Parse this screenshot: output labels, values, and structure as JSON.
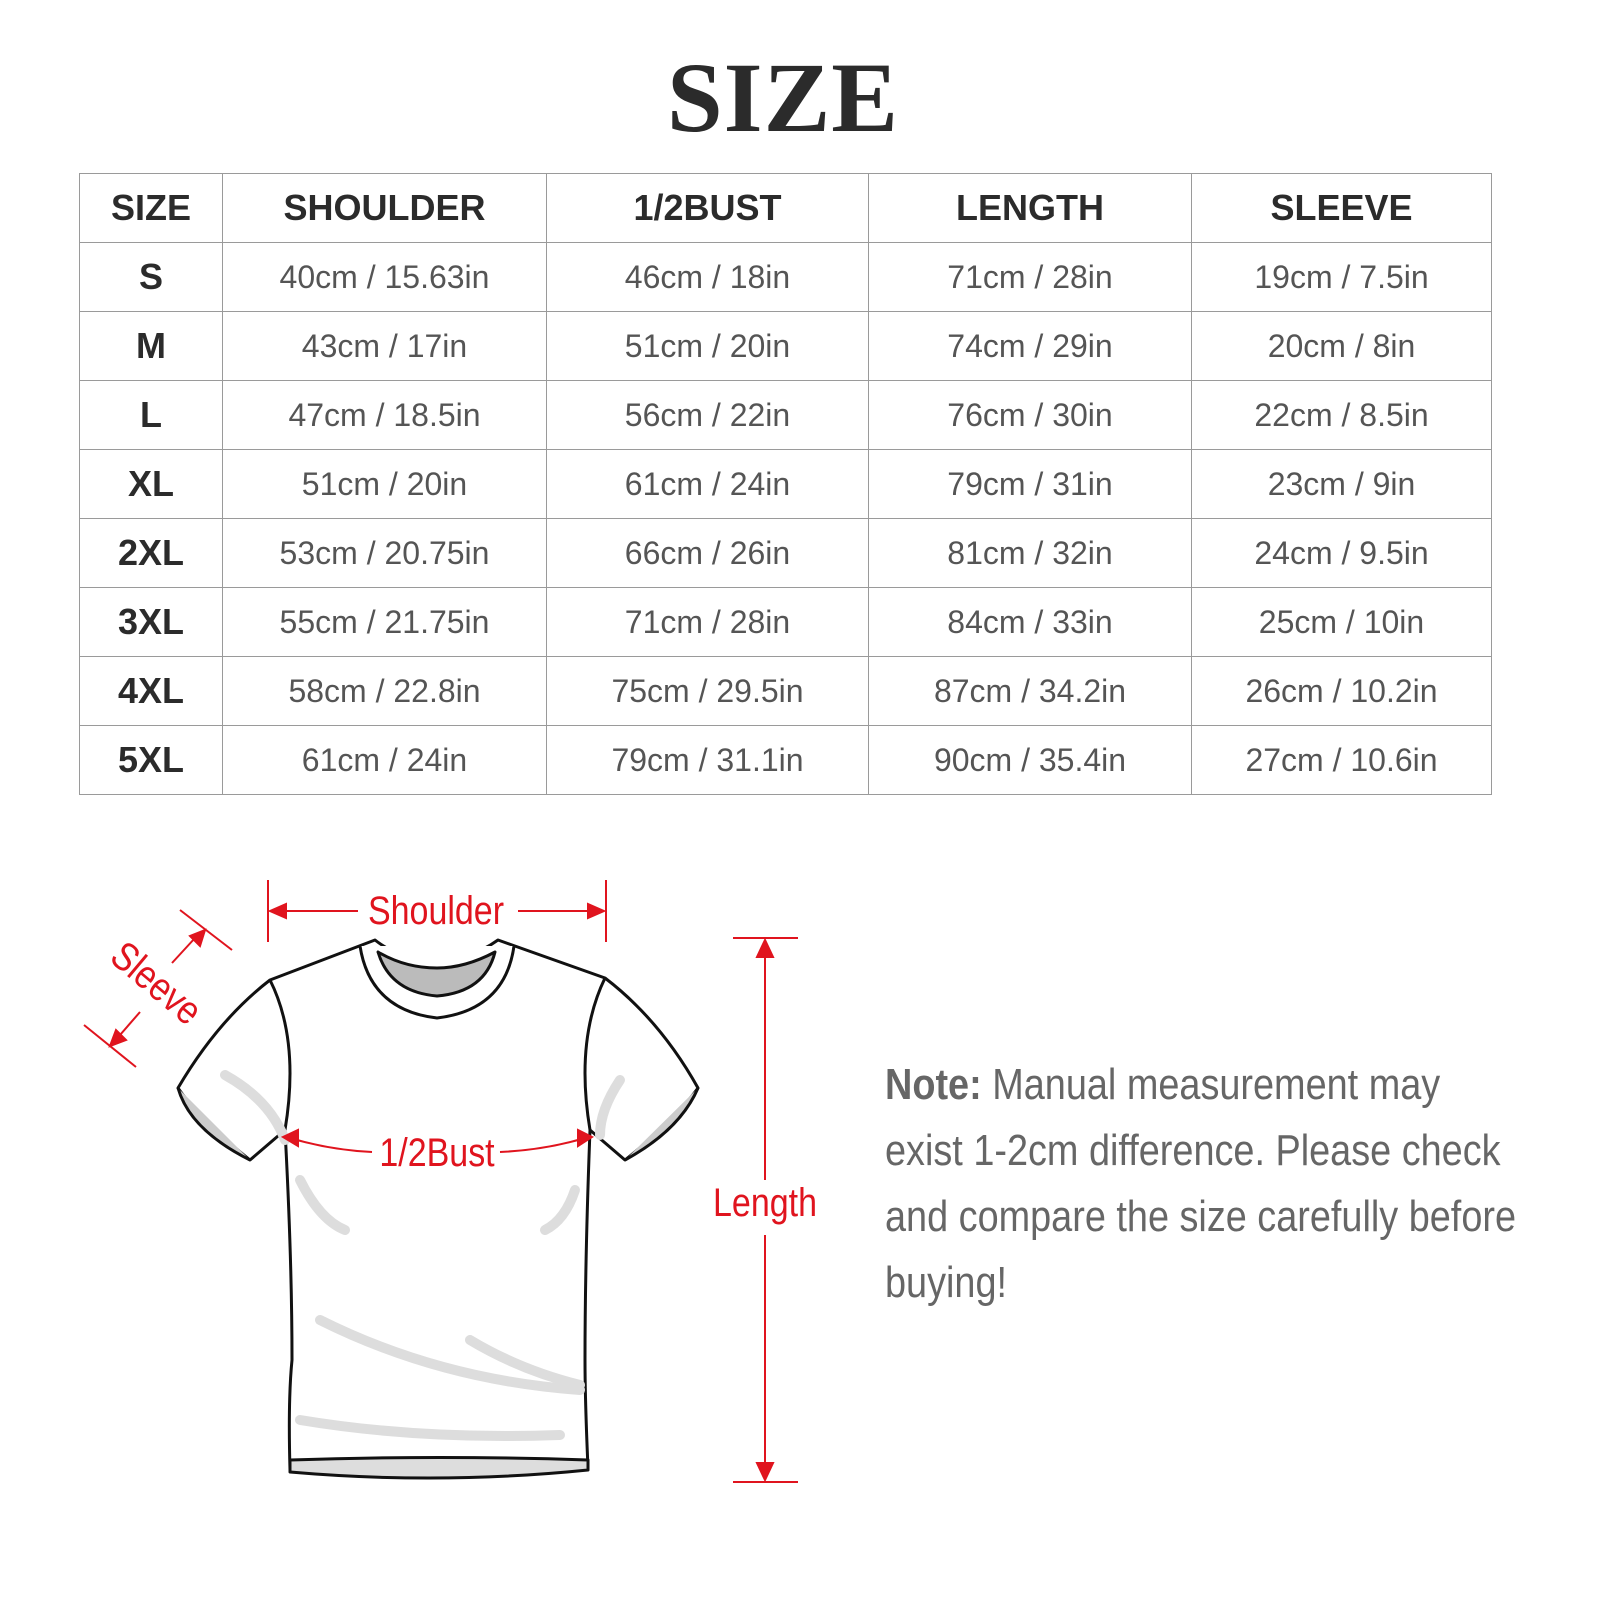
{
  "title": "SIZE",
  "table": {
    "headers": [
      "SIZE",
      "SHOULDER",
      "1/2BUST",
      "LENGTH",
      "SLEEVE"
    ],
    "rows": [
      [
        "S",
        "40cm / 15.63in",
        "46cm / 18in",
        "71cm / 28in",
        "19cm / 7.5in"
      ],
      [
        "M",
        "43cm / 17in",
        "51cm / 20in",
        "74cm / 29in",
        "20cm / 8in"
      ],
      [
        "L",
        "47cm / 18.5in",
        "56cm / 22in",
        "76cm / 30in",
        "22cm / 8.5in"
      ],
      [
        "XL",
        "51cm / 20in",
        "61cm / 24in",
        "79cm / 31in",
        "23cm / 9in"
      ],
      [
        "2XL",
        "53cm / 20.75in",
        "66cm / 26in",
        "81cm / 32in",
        "24cm / 9.5in"
      ],
      [
        "3XL",
        "55cm / 21.75in",
        "71cm / 28in",
        "84cm / 33in",
        "25cm / 10in"
      ],
      [
        "4XL",
        "58cm / 22.8in",
        "75cm / 29.5in",
        "87cm / 34.2in",
        "26cm / 10.2in"
      ],
      [
        "5XL",
        "61cm / 24in",
        "79cm / 31.1in",
        "90cm / 35.4in",
        "27cm / 10.6in"
      ]
    ]
  },
  "diagram": {
    "labels": {
      "shoulder": "Shoulder",
      "sleeve": "Sleeve",
      "bust": "1/2Bust",
      "length": "Length"
    },
    "accent_color": "#e0141e"
  },
  "note": {
    "label": "Note:",
    "text": "Manual measurement may exist 1-2cm difference. Please check and compare the size carefully before buying!"
  }
}
